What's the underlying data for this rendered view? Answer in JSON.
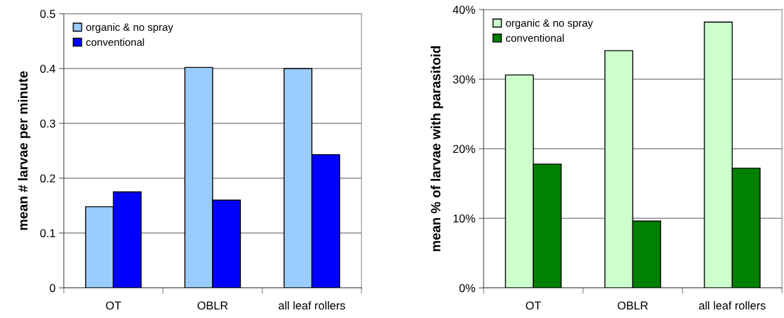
{
  "chart_data": [
    {
      "type": "bar",
      "ylabel": "mean # larvae per minute",
      "categories": [
        "OT",
        "OBLR",
        "all leaf rollers"
      ],
      "series": [
        {
          "name": "organic & no spray",
          "color": "#99ccff",
          "values": [
            0.148,
            0.402,
            0.4
          ]
        },
        {
          "name": "conventional",
          "color": "#0000ff",
          "values": [
            0.175,
            0.16,
            0.243
          ]
        }
      ],
      "ylim": [
        0,
        0.5
      ],
      "yticks": [
        0,
        0.1,
        0.2,
        0.3,
        0.4,
        0.5
      ],
      "grid": "y",
      "legend": "top left"
    },
    {
      "type": "bar",
      "ylabel": "mean % of larvae with parasitoid",
      "categories": [
        "OT",
        "OBLR",
        "all leaf rollers"
      ],
      "series": [
        {
          "name": "organic & no spray",
          "color": "#ccffcc",
          "values": [
            30.6,
            34.1,
            38.2
          ]
        },
        {
          "name": "conventional",
          "color": "#008000",
          "values": [
            17.8,
            9.6,
            17.2
          ]
        }
      ],
      "ylim": [
        0,
        40
      ],
      "yticks": [
        {
          "value": 0,
          "label": "0%"
        },
        {
          "value": 10,
          "label": "10%"
        },
        {
          "value": 20,
          "label": "20%"
        },
        {
          "value": 30,
          "label": "30%"
        },
        {
          "value": 40,
          "label": "40%"
        }
      ],
      "grid": "y",
      "legend": "top left"
    }
  ]
}
